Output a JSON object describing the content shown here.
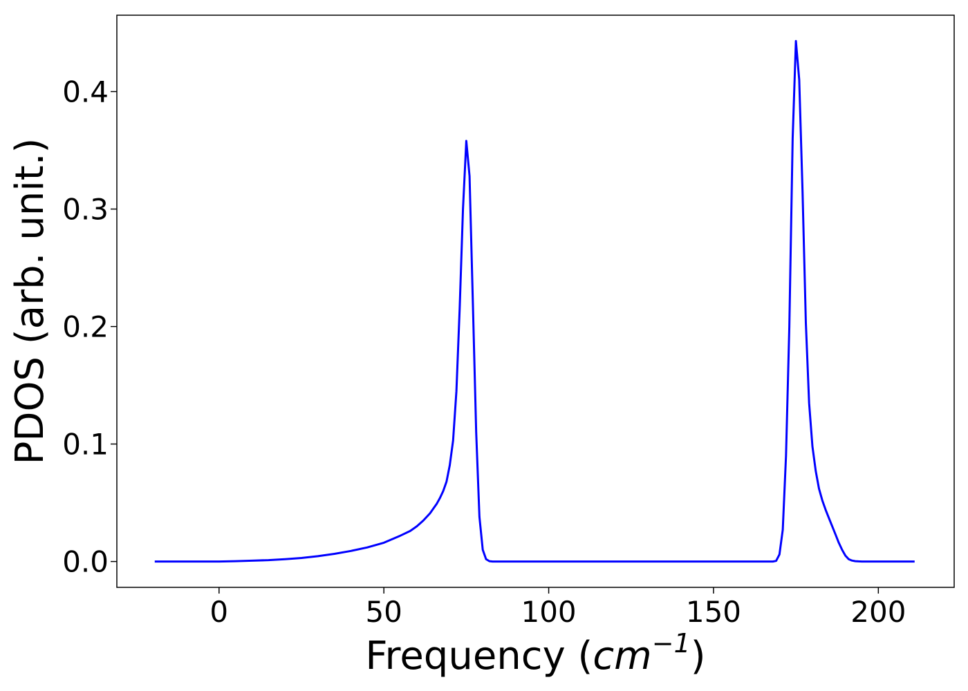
{
  "chart_data": {
    "type": "line",
    "xlabel_text": "Frequency (",
    "xlabel_math": "cm",
    "xlabel_sup": "−1",
    "xlabel_close": ")",
    "ylabel": "PDOS (arb. unit.)",
    "xlim": [
      -31,
      223
    ],
    "ylim": [
      -0.022,
      0.465
    ],
    "xticks": [
      0,
      50,
      100,
      150,
      200
    ],
    "xtick_labels": [
      "0",
      "50",
      "100",
      "150",
      "200"
    ],
    "yticks": [
      0.0,
      0.1,
      0.2,
      0.3,
      0.4
    ],
    "ytick_labels": [
      "0.0",
      "0.1",
      "0.2",
      "0.3",
      "0.4"
    ],
    "grid": false,
    "series": [
      {
        "color": "#0000ff",
        "x": [
          -19.5,
          -10,
          0,
          5,
          10,
          15,
          20,
          25,
          30,
          35,
          40,
          45,
          50,
          55,
          58,
          60,
          62,
          64,
          66,
          67,
          68,
          69,
          70,
          71,
          72,
          73,
          74,
          75,
          76,
          77,
          78,
          79,
          80,
          81,
          82,
          83,
          85,
          100,
          120,
          140,
          160,
          166,
          168,
          169,
          170,
          171,
          172,
          173,
          174,
          175,
          176,
          177,
          178,
          179,
          180,
          181,
          182,
          183,
          184,
          185,
          186,
          187,
          188,
          189,
          190,
          191,
          192,
          193,
          194,
          195,
          196,
          198,
          205,
          211
        ],
        "y": [
          0.0,
          0.0,
          0.0,
          0.0003,
          0.0007,
          0.0012,
          0.002,
          0.003,
          0.0045,
          0.0065,
          0.009,
          0.012,
          0.016,
          0.022,
          0.026,
          0.03,
          0.035,
          0.041,
          0.049,
          0.054,
          0.06,
          0.068,
          0.082,
          0.103,
          0.145,
          0.215,
          0.3,
          0.358,
          0.328,
          0.22,
          0.11,
          0.038,
          0.01,
          0.002,
          0.0003,
          0.0,
          0.0,
          0.0,
          0.0,
          0.0,
          0.0,
          0.0,
          0.0,
          0.0005,
          0.006,
          0.027,
          0.09,
          0.2,
          0.36,
          0.443,
          0.41,
          0.315,
          0.203,
          0.135,
          0.098,
          0.077,
          0.062,
          0.052,
          0.044,
          0.037,
          0.03,
          0.023,
          0.016,
          0.01,
          0.005,
          0.002,
          0.0008,
          0.0003,
          0.0001,
          0.0,
          0.0,
          0.0,
          0.0,
          0.0
        ]
      }
    ]
  }
}
